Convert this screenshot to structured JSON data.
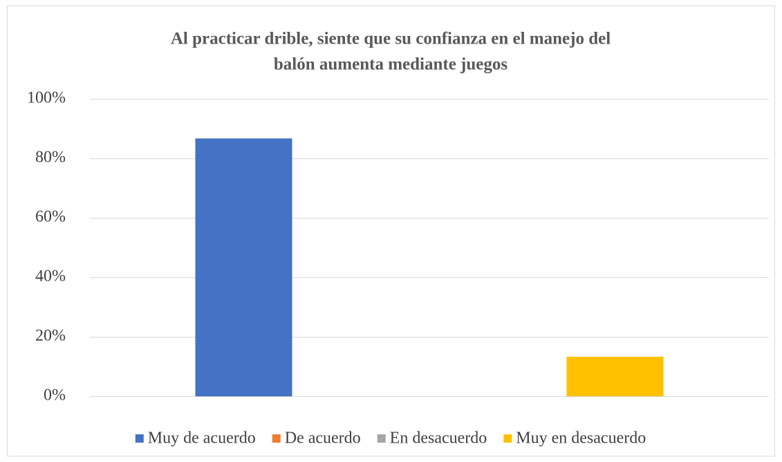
{
  "chart_data": {
    "type": "bar",
    "title": [
      "Al practicar drible, siente que su confianza en el manejo del",
      "balón aumenta mediante juegos"
    ],
    "categories": [
      null
    ],
    "series": [
      {
        "name": "Muy de acuerdo",
        "color": "#4472c4",
        "values": [
          86.7
        ]
      },
      {
        "name": "De acuerdo",
        "color": "#ed7d31",
        "values": [
          0
        ]
      },
      {
        "name": "En desacuerdo",
        "color": "#a5a5a5",
        "values": [
          0
        ]
      },
      {
        "name": "Muy en desacuerdo",
        "color": "#ffc000",
        "values": [
          13.3
        ]
      }
    ],
    "ylim": [
      0,
      100
    ],
    "yticks": [
      {
        "value": 0,
        "label": "0%"
      },
      {
        "value": 20,
        "label": "20%"
      },
      {
        "value": 40,
        "label": "40%"
      },
      {
        "value": 60,
        "label": "60%"
      },
      {
        "value": 80,
        "label": "80%"
      },
      {
        "value": 100,
        "label": "100%"
      }
    ],
    "grid": true,
    "legend": "bottom"
  }
}
